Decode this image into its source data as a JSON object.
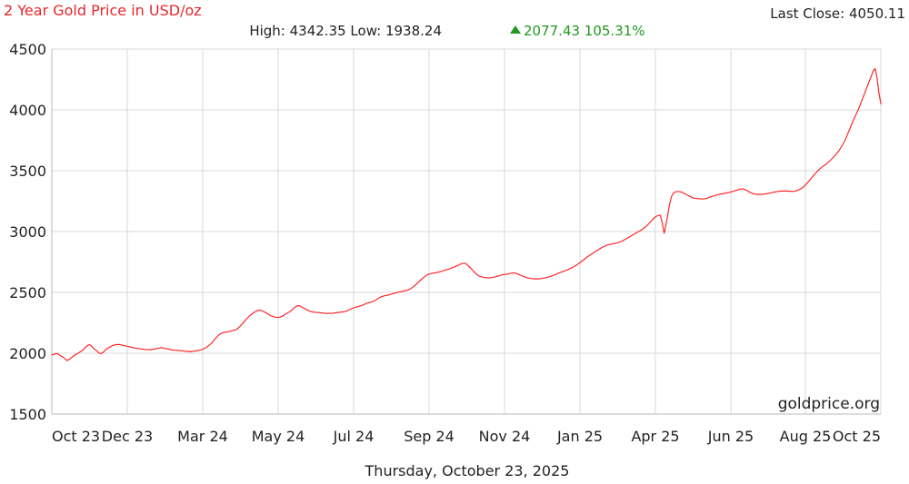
{
  "header": {
    "title": "2 Year Gold Price in USD/oz",
    "last_close": "Last Close: 4050.11",
    "high_low": "High: 4342.35 Low: 1938.24",
    "change": "2077.43 105.31%"
  },
  "watermark": "goldprice.org",
  "date_caption": "Thursday, October 23, 2025",
  "colors": {
    "title": "#e8262b",
    "series": "#ff1f1f",
    "change": "#1f9a1f"
  },
  "chart_data": {
    "type": "line",
    "ylim": [
      1500,
      4500
    ],
    "y_ticks": [
      4500,
      4000,
      3500,
      3000,
      2500,
      2000,
      1500
    ],
    "x_ticks": [
      "Oct 23",
      "Dec 23",
      "Mar 24",
      "May 24",
      "Jul 24",
      "Sep 24",
      "Nov 24",
      "Jan 25",
      "Apr 25",
      "Jun 25",
      "Aug 25",
      "Oct 25"
    ],
    "grid": true,
    "series": [
      {
        "values": [
          1987,
          1990,
          1996,
          1998,
          1986,
          1975,
          1968,
          1954,
          1941,
          1946,
          1958,
          1972,
          1983,
          1992,
          2001,
          2011,
          2020,
          2035,
          2050,
          2064,
          2071,
          2058,
          2044,
          2031,
          2018,
          2003,
          1996,
          2004,
          2019,
          2034,
          2045,
          2051,
          2062,
          2067,
          2070,
          2072,
          2071,
          2068,
          2064,
          2061,
          2057,
          2054,
          2049,
          2046,
          2043,
          2040,
          2038,
          2036,
          2034,
          2032,
          2031,
          2029,
          2028,
          2030,
          2033,
          2036,
          2039,
          2042,
          2046,
          2043,
          2040,
          2038,
          2034,
          2030,
          2027,
          2025,
          2024,
          2023,
          2022,
          2020,
          2018,
          2016,
          2015,
          2014,
          2014,
          2016,
          2019,
          2021,
          2024,
          2027,
          2031,
          2039,
          2048,
          2060,
          2072,
          2087,
          2105,
          2123,
          2140,
          2155,
          2164,
          2169,
          2172,
          2175,
          2178,
          2182,
          2186,
          2190,
          2196,
          2208,
          2223,
          2240,
          2258,
          2276,
          2293,
          2308,
          2320,
          2331,
          2342,
          2350,
          2354,
          2352,
          2346,
          2338,
          2329,
          2320,
          2310,
          2304,
          2299,
          2295,
          2294,
          2296,
          2302,
          2311,
          2321,
          2329,
          2339,
          2349,
          2363,
          2377,
          2388,
          2392,
          2386,
          2377,
          2368,
          2360,
          2352,
          2345,
          2341,
          2338,
          2336,
          2335,
          2334,
          2332,
          2330,
          2328,
          2327,
          2327,
          2328,
          2329,
          2331,
          2333,
          2335,
          2337,
          2339,
          2341,
          2345,
          2351,
          2358,
          2366,
          2372,
          2376,
          2381,
          2386,
          2391,
          2395,
          2402,
          2410,
          2415,
          2418,
          2423,
          2429,
          2438,
          2449,
          2458,
          2465,
          2470,
          2474,
          2476,
          2480,
          2485,
          2490,
          2494,
          2498,
          2502,
          2506,
          2509,
          2512,
          2515,
          2520,
          2527,
          2536,
          2547,
          2560,
          2575,
          2590,
          2605,
          2618,
          2630,
          2642,
          2649,
          2653,
          2657,
          2660,
          2663,
          2666,
          2670,
          2674,
          2679,
          2684,
          2689,
          2694,
          2699,
          2705,
          2712,
          2718,
          2725,
          2733,
          2738,
          2740,
          2733,
          2719,
          2704,
          2688,
          2672,
          2656,
          2642,
          2633,
          2628,
          2624,
          2622,
          2620,
          2620,
          2621,
          2623,
          2626,
          2630,
          2635,
          2640,
          2645,
          2647,
          2649,
          2651,
          2654,
          2657,
          2660,
          2658,
          2653,
          2647,
          2640,
          2633,
          2627,
          2622,
          2618,
          2615,
          2613,
          2612,
          2611,
          2611,
          2612,
          2614,
          2617,
          2620,
          2624,
          2628,
          2633,
          2639,
          2645,
          2651,
          2658,
          2664,
          2670,
          2676,
          2682,
          2688,
          2695,
          2702,
          2711,
          2720,
          2730,
          2741,
          2753,
          2765,
          2777,
          2789,
          2800,
          2810,
          2820,
          2830,
          2840,
          2850,
          2860,
          2869,
          2877,
          2884,
          2890,
          2894,
          2897,
          2900,
          2903,
          2907,
          2912,
          2918,
          2925,
          2933,
          2942,
          2951,
          2960,
          2969,
          2978,
          2987,
          2996,
          3005,
          3014,
          3025,
          3037,
          3051,
          3067,
          3084,
          3101,
          3116,
          3127,
          3133,
          3135,
          3071,
          2986,
          3057,
          3145,
          3233,
          3291,
          3317,
          3326,
          3329,
          3329,
          3325,
          3319,
          3311,
          3302,
          3294,
          3286,
          3279,
          3274,
          3272,
          3270,
          3269,
          3268,
          3268,
          3271,
          3275,
          3281,
          3287,
          3292,
          3297,
          3301,
          3305,
          3308,
          3311,
          3314,
          3317,
          3320,
          3324,
          3328,
          3332,
          3337,
          3342,
          3347,
          3350,
          3350,
          3345,
          3336,
          3327,
          3319,
          3313,
          3309,
          3306,
          3305,
          3305,
          3306,
          3308,
          3310,
          3313,
          3316,
          3320,
          3323,
          3326,
          3329,
          3331,
          3332,
          3333,
          3333,
          3333,
          3332,
          3331,
          3330,
          3331,
          3334,
          3339,
          3347,
          3356,
          3368,
          3383,
          3400,
          3418,
          3437,
          3455,
          3473,
          3490,
          3506,
          3520,
          3532,
          3543,
          3555,
          3568,
          3582,
          3597,
          3613,
          3630,
          3649,
          3670,
          3694,
          3721,
          3752,
          3786,
          3824,
          3862,
          3899,
          3934,
          3968,
          4000,
          4040,
          4080,
          4120,
          4160,
          4200,
          4240,
          4280,
          4320,
          4340,
          4260,
          4138,
          4050
        ]
      }
    ]
  }
}
